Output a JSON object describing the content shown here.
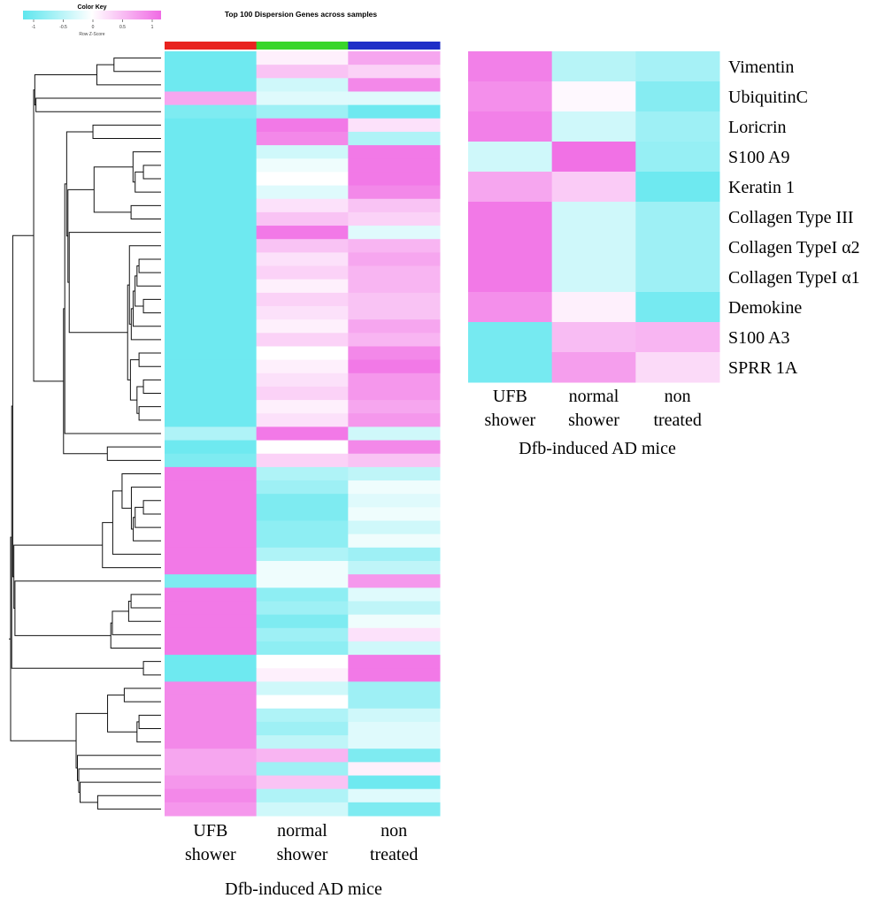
{
  "chart_data": [
    {
      "type": "heatmap",
      "title": "Top 100 Dispersion  Genes across samples",
      "color_key": {
        "title": "Color Key",
        "subtitle": "Row Z-Score",
        "ticks": [
          "-1",
          "-0.5",
          "0",
          "0.5",
          "1"
        ],
        "low_color": "#5ee6ee",
        "mid_color": "#ffffff",
        "high_color": "#f06ae4"
      },
      "columns": [
        "UFB\nshower",
        "normal\nshower",
        "non\ntreated"
      ],
      "column_colors": [
        "#e8231f",
        "#38d62a",
        "#1f2fc7"
      ],
      "xlabel": "Dfb-induced AD mice",
      "rows": [
        [
          -0.9,
          0.1,
          0.6
        ],
        [
          -0.9,
          0.4,
          0.3
        ],
        [
          -0.9,
          -0.3,
          0.8
        ],
        [
          0.6,
          -0.2,
          -0.2
        ],
        [
          -0.8,
          -0.6,
          -0.9
        ],
        [
          -0.9,
          0.9,
          0.2
        ],
        [
          -0.9,
          0.8,
          -0.5
        ],
        [
          -0.9,
          -0.3,
          0.9
        ],
        [
          -0.9,
          -0.1,
          0.9
        ],
        [
          -0.9,
          0.0,
          0.9
        ],
        [
          -0.9,
          -0.2,
          0.8
        ],
        [
          -0.9,
          0.2,
          0.4
        ],
        [
          -0.9,
          0.4,
          0.3
        ],
        [
          -0.9,
          0.9,
          -0.2
        ],
        [
          -0.9,
          0.4,
          0.5
        ],
        [
          -0.9,
          0.2,
          0.6
        ],
        [
          -0.9,
          0.3,
          0.5
        ],
        [
          -0.9,
          0.1,
          0.5
        ],
        [
          -0.9,
          0.3,
          0.4
        ],
        [
          -0.9,
          0.2,
          0.4
        ],
        [
          -0.9,
          0.1,
          0.6
        ],
        [
          -0.9,
          0.3,
          0.5
        ],
        [
          -0.9,
          0.0,
          0.8
        ],
        [
          -0.9,
          0.1,
          0.9
        ],
        [
          -0.9,
          0.2,
          0.7
        ],
        [
          -0.9,
          0.3,
          0.7
        ],
        [
          -0.9,
          0.1,
          0.6
        ],
        [
          -0.9,
          0.2,
          0.7
        ],
        [
          -0.5,
          0.9,
          -0.3
        ],
        [
          -0.9,
          0.0,
          0.8
        ],
        [
          -0.8,
          0.3,
          0.4
        ],
        [
          0.9,
          -0.5,
          -0.4
        ],
        [
          0.9,
          -0.6,
          -0.1
        ],
        [
          0.9,
          -0.8,
          -0.2
        ],
        [
          0.9,
          -0.8,
          -0.1
        ],
        [
          0.9,
          -0.7,
          -0.3
        ],
        [
          0.9,
          -0.7,
          -0.1
        ],
        [
          0.9,
          -0.5,
          -0.6
        ],
        [
          0.9,
          -0.1,
          -0.4
        ],
        [
          -0.8,
          -0.1,
          0.7
        ],
        [
          0.9,
          -0.7,
          -0.2
        ],
        [
          0.9,
          -0.6,
          -0.4
        ],
        [
          0.9,
          -0.8,
          -0.1
        ],
        [
          0.9,
          -0.6,
          0.2
        ],
        [
          0.9,
          -0.7,
          -0.3
        ],
        [
          -0.9,
          0.0,
          0.9
        ],
        [
          -0.9,
          0.1,
          0.9
        ],
        [
          0.8,
          -0.3,
          -0.6
        ],
        [
          0.8,
          0.0,
          -0.6
        ],
        [
          0.8,
          -0.5,
          -0.3
        ],
        [
          0.8,
          -0.6,
          -0.2
        ],
        [
          0.8,
          -0.4,
          -0.2
        ],
        [
          0.6,
          0.5,
          -0.8
        ],
        [
          0.6,
          -0.6,
          0.1
        ],
        [
          0.7,
          0.4,
          -0.9
        ],
        [
          0.8,
          -0.5,
          -0.2
        ],
        [
          0.7,
          -0.3,
          -0.8
        ]
      ]
    },
    {
      "type": "heatmap",
      "columns": [
        "UFB\nshower",
        "normal\nshower",
        "non\ntreated"
      ],
      "xlabel": "Dfb-induced AD mice",
      "row_labels": [
        "Vimentin",
        "UbiquitinC",
        "Loricrin",
        "S100 A9",
        "Keratin 1",
        "Collagen Type III",
        "Collagen TypeI α2",
        "Collagen TypeI α1",
        "Demokine",
        "S100 A3",
        "SPRR 1A"
      ],
      "rows": [
        [
          0.85,
          -0.45,
          -0.55
        ],
        [
          0.75,
          0.05,
          -0.75
        ],
        [
          0.85,
          -0.3,
          -0.6
        ],
        [
          -0.3,
          0.95,
          -0.65
        ],
        [
          0.6,
          0.35,
          -0.9
        ],
        [
          0.9,
          -0.3,
          -0.6
        ],
        [
          0.9,
          -0.3,
          -0.6
        ],
        [
          0.9,
          -0.3,
          -0.6
        ],
        [
          0.75,
          0.1,
          -0.85
        ],
        [
          -0.85,
          0.45,
          0.5
        ],
        [
          -0.85,
          0.65,
          0.25
        ]
      ]
    }
  ]
}
